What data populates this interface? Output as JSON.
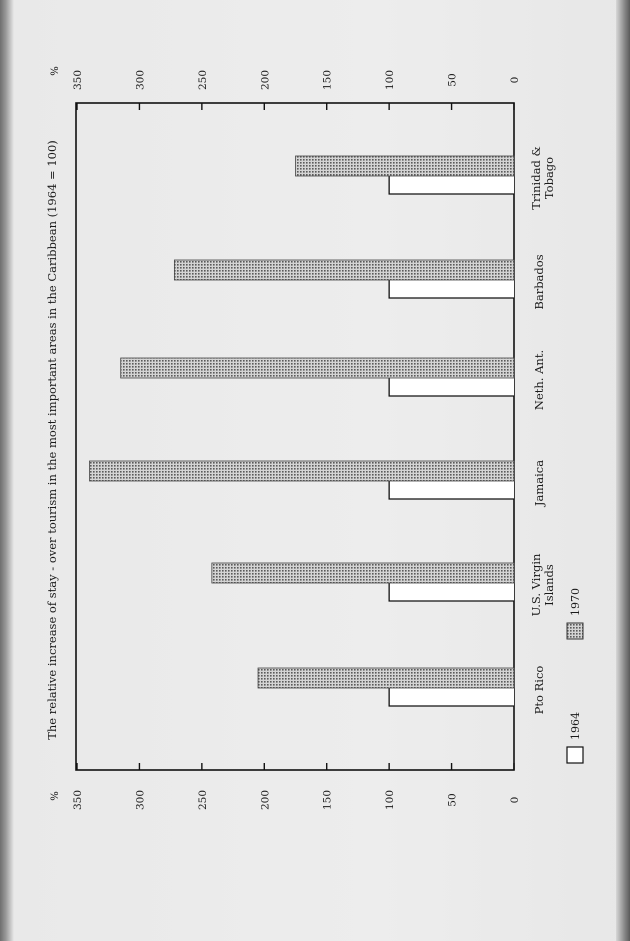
{
  "chart_data": {
    "type": "bar",
    "title": "The relative increase of stay - over tourism in the most important areas in the Caribbean (1964 = 100)",
    "unit": "%",
    "ylim": [
      0,
      350
    ],
    "yticks": [
      0,
      50,
      100,
      150,
      200,
      250,
      300,
      350
    ],
    "categories": [
      "Pto Rico",
      "U.S. Virgin Islands",
      "Jamaica",
      "Neth. Ant.",
      "Barbados",
      "Trinidad & Tobago"
    ],
    "series": [
      {
        "name": "1964",
        "values": [
          100,
          100,
          100,
          100,
          100,
          100
        ],
        "color": "#ffffff"
      },
      {
        "name": "1970",
        "values": [
          205,
          242,
          340,
          315,
          272,
          175
        ],
        "color": "#8c8c8c"
      }
    ],
    "legend_position": "bottom"
  }
}
